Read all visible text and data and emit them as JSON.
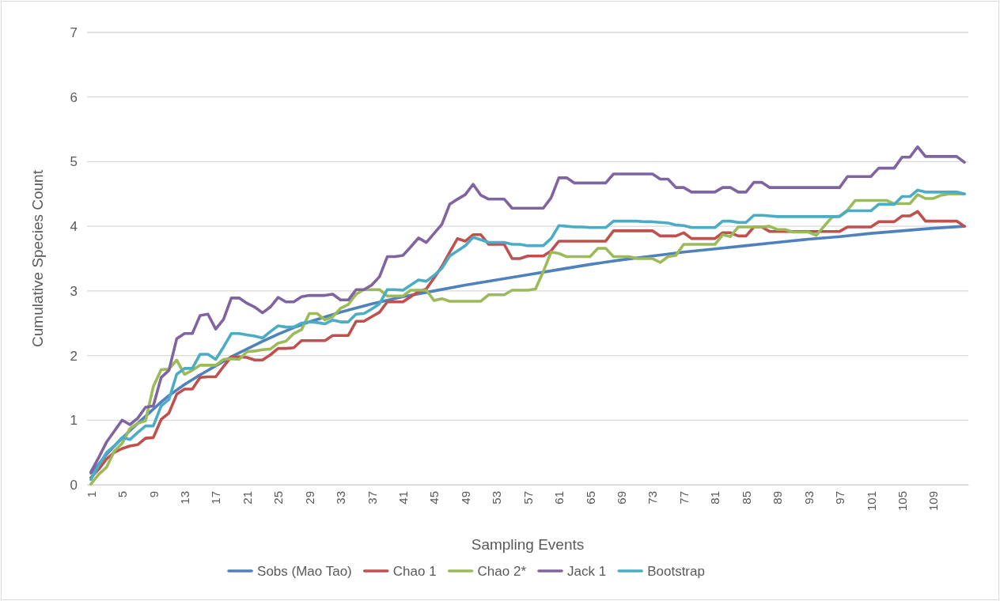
{
  "chart_data": {
    "type": "line",
    "xlabel": "Sampling Events",
    "ylabel": "Cumulative Species Count",
    "x": [
      1,
      2,
      3,
      4,
      5,
      6,
      7,
      8,
      9,
      10,
      11,
      12,
      13,
      14,
      15,
      16,
      17,
      18,
      19,
      20,
      21,
      22,
      23,
      24,
      25,
      26,
      27,
      28,
      29,
      30,
      31,
      32,
      33,
      34,
      35,
      36,
      37,
      38,
      39,
      40,
      41,
      42,
      43,
      44,
      45,
      46,
      47,
      48,
      49,
      50,
      51,
      52,
      53,
      54,
      55,
      56,
      57,
      58,
      59,
      60,
      61,
      62,
      63,
      64,
      65,
      66,
      67,
      68,
      69,
      70,
      71,
      72,
      73,
      74,
      75,
      76,
      77,
      78,
      79,
      80,
      81,
      82,
      83,
      84,
      85,
      86,
      87,
      88,
      89,
      90,
      91,
      92,
      93,
      94,
      95,
      96,
      97,
      98,
      99,
      100,
      101,
      102,
      103,
      104,
      105,
      106,
      107,
      108,
      109,
      110,
      111,
      112,
      113
    ],
    "xlim": [
      0.5,
      113.5
    ],
    "xticks": [
      1,
      5,
      9,
      13,
      17,
      21,
      25,
      29,
      33,
      37,
      41,
      45,
      49,
      53,
      57,
      61,
      65,
      69,
      73,
      77,
      81,
      85,
      89,
      93,
      97,
      101,
      105,
      109
    ],
    "ylim": [
      0,
      7
    ],
    "yticks": [
      0,
      1,
      2,
      3,
      4,
      5,
      6,
      7
    ],
    "grid": "y",
    "legend": "bottom",
    "series": [
      {
        "name": "Sobs (Mao Tao)",
        "color": "#4f81bd",
        "x": [
          1,
          2,
          3,
          4,
          5,
          6,
          7,
          8,
          9,
          10,
          11,
          13,
          15,
          17,
          19,
          21,
          23,
          25,
          27,
          29,
          33,
          37,
          41,
          45,
          49,
          53,
          57,
          61,
          65,
          69,
          73,
          77,
          81,
          85,
          89,
          93,
          97,
          101,
          105,
          109,
          113
        ],
        "values": [
          0.18,
          0.32,
          0.47,
          0.6,
          0.72,
          0.84,
          0.95,
          1.06,
          1.17,
          1.28,
          1.38,
          1.55,
          1.7,
          1.84,
          1.98,
          2.1,
          2.22,
          2.33,
          2.43,
          2.52,
          2.67,
          2.8,
          2.91,
          3.0,
          3.09,
          3.17,
          3.25,
          3.33,
          3.41,
          3.48,
          3.54,
          3.6,
          3.65,
          3.7,
          3.75,
          3.8,
          3.84,
          3.89,
          3.93,
          3.97,
          4.0
        ]
      },
      {
        "name": "Chao 1",
        "color": "#c0504d",
        "values": [
          0.11,
          0.24,
          0.4,
          0.5,
          0.56,
          0.6,
          0.62,
          0.72,
          0.73,
          1.01,
          1.11,
          1.4,
          1.48,
          1.48,
          1.66,
          1.67,
          1.67,
          1.83,
          1.98,
          1.98,
          1.97,
          1.93,
          1.93,
          2.01,
          2.11,
          2.11,
          2.12,
          2.23,
          2.23,
          2.23,
          2.23,
          2.31,
          2.31,
          2.31,
          2.53,
          2.53,
          2.6,
          2.67,
          2.83,
          2.83,
          2.83,
          2.91,
          2.99,
          3.03,
          3.2,
          3.38,
          3.6,
          3.81,
          3.77,
          3.87,
          3.87,
          3.72,
          3.72,
          3.72,
          3.5,
          3.5,
          3.54,
          3.54,
          3.54,
          3.62,
          3.77,
          3.77,
          3.77,
          3.77,
          3.77,
          3.77,
          3.77,
          3.93,
          3.93,
          3.93,
          3.93,
          3.93,
          3.93,
          3.85,
          3.85,
          3.85,
          3.9,
          3.81,
          3.81,
          3.81,
          3.81,
          3.9,
          3.9,
          3.85,
          3.85,
          3.99,
          3.99,
          3.92,
          3.92,
          3.92,
          3.92,
          3.92,
          3.92,
          3.92,
          3.92,
          3.92,
          3.92,
          3.99,
          3.99,
          3.99,
          3.99,
          4.07,
          4.07,
          4.07,
          4.16,
          4.16,
          4.23,
          4.08,
          4.08,
          4.08,
          4.08,
          4.08,
          4.0
        ]
      },
      {
        "name": "Chao 2*",
        "color": "#9bbb59",
        "values": [
          0.01,
          0.16,
          0.27,
          0.52,
          0.64,
          0.87,
          0.95,
          0.99,
          1.52,
          1.78,
          1.79,
          1.93,
          1.71,
          1.77,
          1.85,
          1.85,
          1.85,
          1.94,
          1.95,
          1.94,
          2.06,
          2.07,
          2.09,
          2.1,
          2.19,
          2.22,
          2.34,
          2.4,
          2.65,
          2.65,
          2.55,
          2.6,
          2.73,
          2.79,
          2.95,
          3.02,
          3.02,
          3.02,
          2.92,
          2.92,
          2.92,
          3.01,
          3.01,
          3.01,
          2.85,
          2.88,
          2.84,
          2.84,
          2.84,
          2.84,
          2.84,
          2.94,
          2.94,
          2.94,
          3.01,
          3.01,
          3.01,
          3.03,
          3.3,
          3.6,
          3.58,
          3.53,
          3.53,
          3.53,
          3.53,
          3.66,
          3.66,
          3.53,
          3.53,
          3.53,
          3.5,
          3.5,
          3.5,
          3.44,
          3.53,
          3.55,
          3.72,
          3.72,
          3.72,
          3.72,
          3.72,
          3.87,
          3.84,
          3.99,
          3.99,
          3.99,
          3.99,
          4.0,
          3.95,
          3.95,
          3.91,
          3.91,
          3.91,
          3.86,
          4.0,
          4.14,
          4.16,
          4.25,
          4.4,
          4.4,
          4.4,
          4.4,
          4.4,
          4.35,
          4.35,
          4.35,
          4.49,
          4.43,
          4.43,
          4.48,
          4.5,
          4.5,
          4.5
        ]
      },
      {
        "name": "Jack 1",
        "color": "#8064a2",
        "values": [
          0.2,
          0.42,
          0.66,
          0.83,
          1.0,
          0.93,
          1.03,
          1.2,
          1.22,
          1.66,
          1.77,
          2.26,
          2.34,
          2.34,
          2.62,
          2.64,
          2.41,
          2.56,
          2.89,
          2.89,
          2.81,
          2.75,
          2.66,
          2.75,
          2.9,
          2.83,
          2.83,
          2.91,
          2.93,
          2.93,
          2.93,
          2.95,
          2.86,
          2.86,
          3.02,
          3.02,
          3.09,
          3.22,
          3.53,
          3.53,
          3.55,
          3.68,
          3.82,
          3.75,
          3.89,
          4.03,
          4.34,
          4.42,
          4.49,
          4.65,
          4.48,
          4.42,
          4.42,
          4.42,
          4.28,
          4.28,
          4.28,
          4.28,
          4.28,
          4.44,
          4.75,
          4.75,
          4.67,
          4.67,
          4.67,
          4.67,
          4.67,
          4.81,
          4.81,
          4.81,
          4.81,
          4.81,
          4.81,
          4.73,
          4.73,
          4.6,
          4.6,
          4.53,
          4.53,
          4.53,
          4.53,
          4.6,
          4.6,
          4.53,
          4.53,
          4.68,
          4.68,
          4.6,
          4.6,
          4.6,
          4.6,
          4.6,
          4.6,
          4.6,
          4.6,
          4.6,
          4.6,
          4.77,
          4.77,
          4.77,
          4.77,
          4.9,
          4.9,
          4.9,
          5.07,
          5.07,
          5.23,
          5.08,
          5.08,
          5.08,
          5.08,
          5.08,
          4.99
        ]
      },
      {
        "name": "Bootstrap",
        "color": "#4bacc6",
        "values": [
          0.08,
          0.3,
          0.5,
          0.6,
          0.73,
          0.7,
          0.81,
          0.91,
          0.91,
          1.22,
          1.32,
          1.71,
          1.8,
          1.8,
          2.02,
          2.02,
          1.94,
          2.13,
          2.34,
          2.34,
          2.32,
          2.3,
          2.27,
          2.37,
          2.46,
          2.44,
          2.44,
          2.5,
          2.52,
          2.51,
          2.49,
          2.55,
          2.52,
          2.52,
          2.64,
          2.65,
          2.72,
          2.8,
          3.02,
          3.02,
          3.01,
          3.09,
          3.17,
          3.15,
          3.24,
          3.35,
          3.54,
          3.62,
          3.7,
          3.83,
          3.79,
          3.75,
          3.75,
          3.75,
          3.72,
          3.72,
          3.7,
          3.7,
          3.7,
          3.81,
          4.01,
          4.0,
          3.99,
          3.99,
          3.98,
          3.98,
          3.98,
          4.08,
          4.08,
          4.08,
          4.08,
          4.07,
          4.07,
          4.06,
          4.05,
          4.02,
          4.01,
          3.98,
          3.98,
          3.98,
          3.98,
          4.08,
          4.08,
          4.06,
          4.06,
          4.17,
          4.17,
          4.16,
          4.15,
          4.15,
          4.15,
          4.15,
          4.15,
          4.15,
          4.15,
          4.15,
          4.15,
          4.24,
          4.24,
          4.24,
          4.24,
          4.34,
          4.34,
          4.34,
          4.46,
          4.46,
          4.56,
          4.53,
          4.53,
          4.53,
          4.53,
          4.53,
          4.5
        ]
      }
    ]
  }
}
